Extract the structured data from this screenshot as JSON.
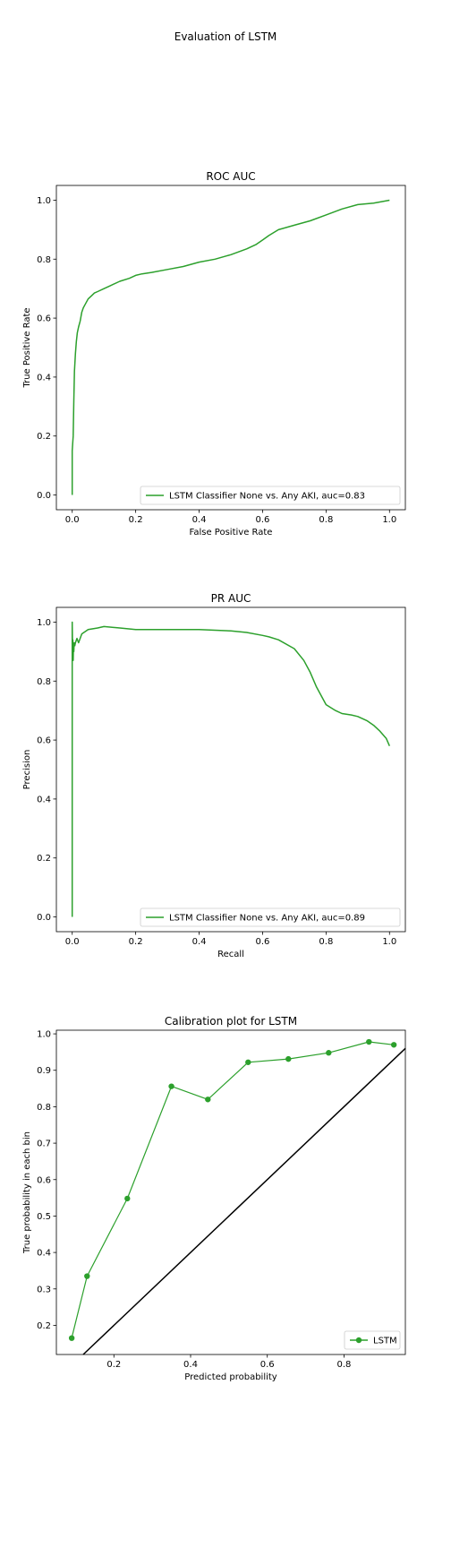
{
  "figure": {
    "suptitle": "Evaluation of LSTM"
  },
  "colors": {
    "series": "#2ca02c",
    "diagonal": "#000000",
    "frame": "#000000",
    "legend_border": "#cccccc"
  },
  "chart_data": [
    {
      "type": "line",
      "title": "ROC AUC",
      "xlabel": "False Positive Rate",
      "ylabel": "True Positive Rate",
      "xlim": [
        -0.05,
        1.05
      ],
      "ylim": [
        -0.05,
        1.05
      ],
      "xticks": [
        "0.0",
        "0.2",
        "0.4",
        "0.6",
        "0.8",
        "1.0"
      ],
      "yticks": [
        "0.0",
        "0.2",
        "0.4",
        "0.6",
        "0.8",
        "1.0"
      ],
      "grid": false,
      "legend_position": "lower-right",
      "series": [
        {
          "name": "LSTM Classifier None vs. Any AKI, auc=0.83",
          "x": [
            0.0,
            0.0,
            0.003,
            0.005,
            0.007,
            0.01,
            0.013,
            0.016,
            0.02,
            0.025,
            0.03,
            0.035,
            0.04,
            0.05,
            0.06,
            0.07,
            0.08,
            0.1,
            0.12,
            0.15,
            0.18,
            0.2,
            0.22,
            0.25,
            0.3,
            0.35,
            0.4,
            0.45,
            0.5,
            0.55,
            0.58,
            0.6,
            0.62,
            0.65,
            0.7,
            0.75,
            0.8,
            0.85,
            0.9,
            0.95,
            1.0
          ],
          "y": [
            0.0,
            0.15,
            0.2,
            0.32,
            0.42,
            0.48,
            0.52,
            0.55,
            0.57,
            0.59,
            0.62,
            0.635,
            0.645,
            0.665,
            0.675,
            0.685,
            0.69,
            0.7,
            0.71,
            0.725,
            0.735,
            0.745,
            0.75,
            0.755,
            0.765,
            0.775,
            0.79,
            0.8,
            0.815,
            0.835,
            0.85,
            0.865,
            0.88,
            0.9,
            0.915,
            0.93,
            0.95,
            0.97,
            0.985,
            0.99,
            1.0
          ]
        }
      ]
    },
    {
      "type": "line",
      "title": "PR AUC",
      "xlabel": "Recall",
      "ylabel": "Precision",
      "xlim": [
        -0.05,
        1.05
      ],
      "ylim": [
        -0.05,
        1.05
      ],
      "xticks": [
        "0.0",
        "0.2",
        "0.4",
        "0.6",
        "0.8",
        "1.0"
      ],
      "yticks": [
        "0.0",
        "0.2",
        "0.4",
        "0.6",
        "0.8",
        "1.0"
      ],
      "grid": false,
      "legend_position": "lower-right",
      "series": [
        {
          "name": "LSTM Classifier None vs. Any AKI, auc=0.89",
          "x": [
            0.0,
            0.0,
            0.001,
            0.002,
            0.003,
            0.004,
            0.005,
            0.006,
            0.008,
            0.01,
            0.015,
            0.02,
            0.03,
            0.05,
            0.08,
            0.1,
            0.15,
            0.2,
            0.3,
            0.4,
            0.5,
            0.55,
            0.6,
            0.62,
            0.65,
            0.7,
            0.73,
            0.75,
            0.77,
            0.8,
            0.83,
            0.85,
            0.88,
            0.9,
            0.93,
            0.95,
            0.97,
            0.99,
            1.0
          ],
          "y": [
            0.0,
            1.0,
            0.9,
            0.94,
            0.87,
            0.92,
            0.9,
            0.93,
            0.92,
            0.93,
            0.945,
            0.93,
            0.96,
            0.975,
            0.98,
            0.985,
            0.98,
            0.975,
            0.975,
            0.975,
            0.97,
            0.965,
            0.955,
            0.95,
            0.94,
            0.91,
            0.87,
            0.83,
            0.78,
            0.72,
            0.7,
            0.69,
            0.685,
            0.68,
            0.665,
            0.65,
            0.63,
            0.605,
            0.58
          ]
        }
      ]
    },
    {
      "type": "line",
      "title": "Calibration plot for LSTM",
      "xlabel": "Predicted probability",
      "ylabel": "True probability in each bin",
      "xlim": [
        0.05,
        0.96
      ],
      "ylim": [
        0.12,
        1.01
      ],
      "xticks": [
        "0.2",
        "0.4",
        "0.6",
        "0.8"
      ],
      "yticks": [
        "0.2",
        "0.3",
        "0.4",
        "0.5",
        "0.6",
        "0.7",
        "0.8",
        "0.9",
        "1.0"
      ],
      "grid": false,
      "legend_position": "lower-right",
      "diagonal": true,
      "series": [
        {
          "name": "LSTM",
          "x": [
            0.09,
            0.13,
            0.235,
            0.35,
            0.445,
            0.55,
            0.655,
            0.76,
            0.865,
            0.93
          ],
          "y": [
            0.165,
            0.335,
            0.548,
            0.856,
            0.82,
            0.922,
            0.931,
            0.948,
            0.978,
            0.97
          ],
          "markers": true
        }
      ]
    }
  ]
}
